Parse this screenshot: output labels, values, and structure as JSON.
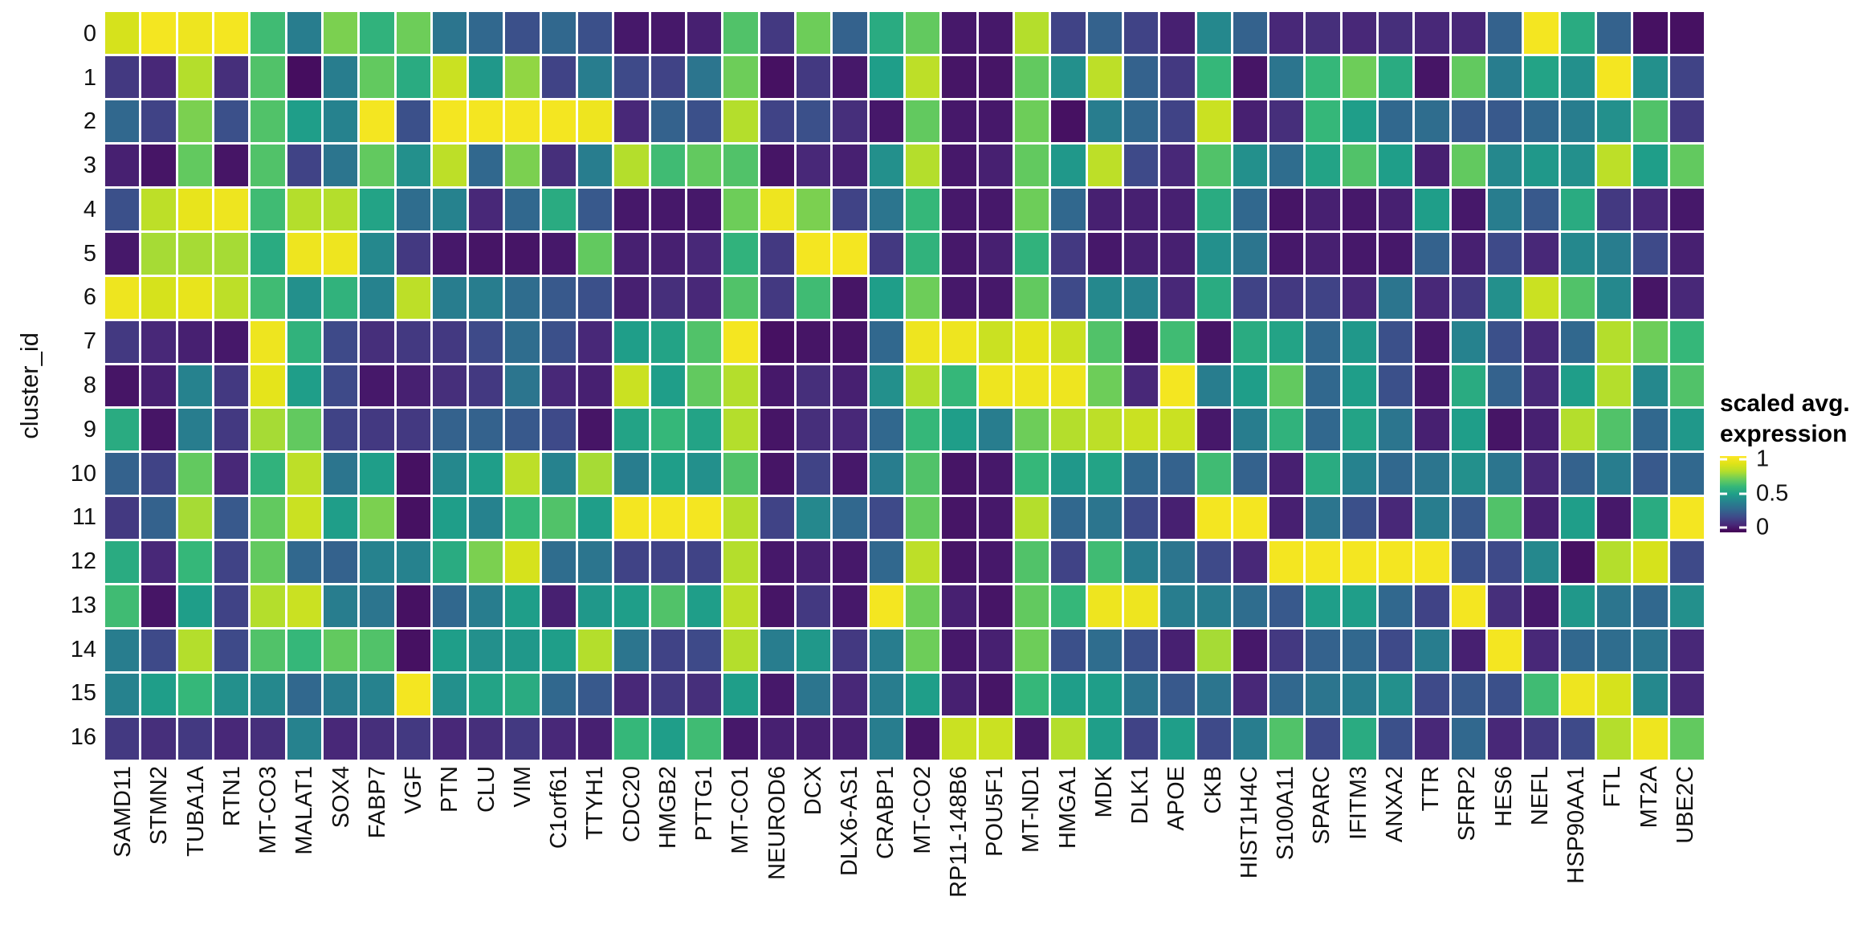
{
  "y_axis": {
    "title": "cluster_id"
  },
  "legend": {
    "title_line1": "scaled avg.",
    "title_line2": "expression",
    "ticks": [
      {
        "label": "1",
        "value": 1.0
      },
      {
        "label": "0.5",
        "value": 0.5
      },
      {
        "label": "0",
        "value": 0.0
      }
    ]
  },
  "colors": {
    "background": "#ffffff",
    "text": "#111111",
    "cell_gap": "#ffffff",
    "viridis_anchors": [
      "#440154",
      "#482878",
      "#3e4a89",
      "#31688e",
      "#26828e",
      "#1f9e89",
      "#35b779",
      "#6dcd59",
      "#b4de2c",
      "#dfe318",
      "#fde725"
    ]
  },
  "chart_data": {
    "type": "heatmap",
    "xlabel": "",
    "ylabel": "cluster_id",
    "zlabel": "scaled avg. expression",
    "zlim": [
      0,
      1
    ],
    "colormap": "viridis",
    "legend_position": "right",
    "grid": false,
    "x": [
      "SAMD11",
      "STMN2",
      "TUBA1A",
      "RTN1",
      "MT-CO3",
      "MALAT1",
      "SOX4",
      "FABP7",
      "VGF",
      "PTN",
      "CLU",
      "VIM",
      "C1orf61",
      "TTYH1",
      "CDC20",
      "HMGB2",
      "PTTG1",
      "MT-CO1",
      "NEUROD6",
      "DCX",
      "DLX6-AS1",
      "CRABP1",
      "MT-CO2",
      "RP11-148B6",
      "POU5F1",
      "MT-ND1",
      "HMGA1",
      "MDK",
      "DLK1",
      "APOE",
      "CKB",
      "HIST1H4C",
      "S100A11",
      "SPARC",
      "IFITM3",
      "ANXA2",
      "TTR",
      "SFRP2",
      "HES6",
      "NEFL",
      "HSP90AA1",
      "FTL",
      "MT2A",
      "UBE2C"
    ],
    "y": [
      "0",
      "1",
      "2",
      "3",
      "4",
      "5",
      "6",
      "7",
      "8",
      "9",
      "10",
      "11",
      "12",
      "13",
      "14",
      "15",
      "16"
    ],
    "values": [
      [
        0.88,
        0.97,
        0.95,
        0.97,
        0.62,
        0.38,
        0.72,
        0.58,
        0.7,
        0.35,
        0.3,
        0.22,
        0.3,
        0.22,
        0.06,
        0.06,
        0.08,
        0.65,
        0.15,
        0.7,
        0.28,
        0.55,
        0.68,
        0.06,
        0.06,
        0.8,
        0.18,
        0.28,
        0.18,
        0.08,
        0.42,
        0.28,
        0.1,
        0.12,
        0.1,
        0.12,
        0.1,
        0.1,
        0.28,
        0.97,
        0.55,
        0.28,
        0.04,
        0.04
      ],
      [
        0.15,
        0.1,
        0.8,
        0.12,
        0.65,
        0.03,
        0.38,
        0.68,
        0.55,
        0.85,
        0.48,
        0.75,
        0.18,
        0.38,
        0.2,
        0.18,
        0.35,
        0.7,
        0.04,
        0.15,
        0.06,
        0.5,
        0.82,
        0.05,
        0.05,
        0.68,
        0.45,
        0.82,
        0.28,
        0.15,
        0.6,
        0.05,
        0.35,
        0.6,
        0.7,
        0.55,
        0.05,
        0.68,
        0.38,
        0.52,
        0.45,
        0.97,
        0.45,
        0.18
      ],
      [
        0.3,
        0.18,
        0.72,
        0.22,
        0.65,
        0.5,
        0.4,
        0.97,
        0.22,
        0.97,
        0.97,
        0.97,
        0.97,
        0.95,
        0.1,
        0.28,
        0.22,
        0.8,
        0.18,
        0.22,
        0.12,
        0.06,
        0.68,
        0.06,
        0.06,
        0.7,
        0.04,
        0.38,
        0.3,
        0.18,
        0.85,
        0.08,
        0.12,
        0.6,
        0.5,
        0.3,
        0.32,
        0.25,
        0.25,
        0.3,
        0.38,
        0.45,
        0.65,
        0.15
      ],
      [
        0.08,
        0.05,
        0.68,
        0.05,
        0.65,
        0.18,
        0.35,
        0.68,
        0.45,
        0.82,
        0.3,
        0.72,
        0.12,
        0.38,
        0.8,
        0.62,
        0.68,
        0.65,
        0.05,
        0.1,
        0.08,
        0.45,
        0.8,
        0.06,
        0.08,
        0.68,
        0.48,
        0.82,
        0.2,
        0.1,
        0.65,
        0.45,
        0.32,
        0.52,
        0.65,
        0.5,
        0.08,
        0.68,
        0.42,
        0.48,
        0.45,
        0.82,
        0.5,
        0.68
      ],
      [
        0.22,
        0.82,
        0.93,
        0.95,
        0.62,
        0.8,
        0.8,
        0.52,
        0.32,
        0.4,
        0.1,
        0.3,
        0.55,
        0.25,
        0.06,
        0.06,
        0.06,
        0.7,
        0.95,
        0.72,
        0.18,
        0.35,
        0.6,
        0.06,
        0.06,
        0.7,
        0.3,
        0.08,
        0.08,
        0.08,
        0.55,
        0.3,
        0.05,
        0.08,
        0.06,
        0.08,
        0.5,
        0.06,
        0.38,
        0.25,
        0.55,
        0.15,
        0.1,
        0.06
      ],
      [
        0.06,
        0.78,
        0.78,
        0.78,
        0.55,
        0.95,
        0.95,
        0.42,
        0.15,
        0.06,
        0.05,
        0.05,
        0.06,
        0.68,
        0.08,
        0.08,
        0.1,
        0.58,
        0.15,
        0.97,
        0.97,
        0.15,
        0.58,
        0.06,
        0.08,
        0.58,
        0.15,
        0.06,
        0.08,
        0.08,
        0.45,
        0.35,
        0.06,
        0.08,
        0.06,
        0.06,
        0.28,
        0.08,
        0.2,
        0.1,
        0.42,
        0.38,
        0.2,
        0.08
      ],
      [
        0.95,
        0.88,
        0.93,
        0.82,
        0.62,
        0.45,
        0.58,
        0.4,
        0.82,
        0.38,
        0.38,
        0.32,
        0.25,
        0.22,
        0.08,
        0.12,
        0.1,
        0.65,
        0.15,
        0.62,
        0.05,
        0.5,
        0.7,
        0.06,
        0.06,
        0.68,
        0.2,
        0.42,
        0.4,
        0.1,
        0.55,
        0.18,
        0.15,
        0.18,
        0.1,
        0.35,
        0.1,
        0.15,
        0.45,
        0.85,
        0.65,
        0.42,
        0.05,
        0.1
      ],
      [
        0.15,
        0.1,
        0.08,
        0.06,
        0.95,
        0.58,
        0.2,
        0.12,
        0.15,
        0.15,
        0.2,
        0.32,
        0.22,
        0.1,
        0.5,
        0.52,
        0.65,
        0.97,
        0.04,
        0.05,
        0.05,
        0.3,
        0.95,
        0.95,
        0.85,
        0.92,
        0.85,
        0.65,
        0.05,
        0.62,
        0.05,
        0.55,
        0.52,
        0.3,
        0.48,
        0.22,
        0.06,
        0.4,
        0.22,
        0.1,
        0.3,
        0.8,
        0.7,
        0.6
      ],
      [
        0.05,
        0.08,
        0.4,
        0.15,
        0.92,
        0.5,
        0.2,
        0.06,
        0.08,
        0.12,
        0.15,
        0.35,
        0.1,
        0.08,
        0.85,
        0.5,
        0.68,
        0.8,
        0.06,
        0.12,
        0.08,
        0.45,
        0.8,
        0.6,
        0.95,
        0.95,
        0.95,
        0.7,
        0.1,
        0.97,
        0.38,
        0.5,
        0.68,
        0.3,
        0.5,
        0.22,
        0.06,
        0.55,
        0.28,
        0.1,
        0.5,
        0.8,
        0.42,
        0.65
      ],
      [
        0.55,
        0.05,
        0.38,
        0.15,
        0.78,
        0.68,
        0.18,
        0.15,
        0.15,
        0.28,
        0.28,
        0.25,
        0.2,
        0.05,
        0.52,
        0.6,
        0.52,
        0.8,
        0.05,
        0.12,
        0.1,
        0.3,
        0.6,
        0.5,
        0.38,
        0.7,
        0.8,
        0.82,
        0.85,
        0.85,
        0.06,
        0.38,
        0.58,
        0.3,
        0.52,
        0.35,
        0.08,
        0.5,
        0.05,
        0.08,
        0.8,
        0.65,
        0.3,
        0.48
      ],
      [
        0.28,
        0.18,
        0.68,
        0.1,
        0.58,
        0.82,
        0.35,
        0.5,
        0.04,
        0.42,
        0.5,
        0.82,
        0.4,
        0.78,
        0.38,
        0.5,
        0.45,
        0.65,
        0.05,
        0.18,
        0.06,
        0.38,
        0.65,
        0.05,
        0.06,
        0.6,
        0.48,
        0.52,
        0.3,
        0.28,
        0.62,
        0.28,
        0.08,
        0.55,
        0.4,
        0.3,
        0.35,
        0.45,
        0.35,
        0.1,
        0.28,
        0.38,
        0.25,
        0.3
      ],
      [
        0.15,
        0.28,
        0.78,
        0.25,
        0.68,
        0.85,
        0.5,
        0.72,
        0.04,
        0.5,
        0.4,
        0.6,
        0.65,
        0.5,
        0.97,
        0.97,
        0.97,
        0.8,
        0.18,
        0.42,
        0.3,
        0.2,
        0.68,
        0.05,
        0.06,
        0.8,
        0.3,
        0.35,
        0.2,
        0.08,
        0.97,
        0.97,
        0.08,
        0.35,
        0.22,
        0.1,
        0.38,
        0.25,
        0.65,
        0.08,
        0.5,
        0.06,
        0.55,
        0.97
      ],
      [
        0.55,
        0.1,
        0.6,
        0.18,
        0.68,
        0.3,
        0.28,
        0.4,
        0.4,
        0.55,
        0.72,
        0.88,
        0.32,
        0.35,
        0.18,
        0.18,
        0.18,
        0.8,
        0.06,
        0.08,
        0.06,
        0.3,
        0.82,
        0.05,
        0.06,
        0.65,
        0.18,
        0.62,
        0.38,
        0.35,
        0.2,
        0.1,
        0.97,
        0.97,
        0.97,
        0.97,
        0.97,
        0.22,
        0.2,
        0.42,
        0.04,
        0.8,
        0.88,
        0.2
      ],
      [
        0.62,
        0.05,
        0.5,
        0.18,
        0.8,
        0.85,
        0.38,
        0.35,
        0.04,
        0.3,
        0.38,
        0.5,
        0.08,
        0.48,
        0.5,
        0.65,
        0.5,
        0.82,
        0.05,
        0.15,
        0.06,
        0.97,
        0.7,
        0.08,
        0.05,
        0.68,
        0.6,
        0.95,
        0.95,
        0.38,
        0.38,
        0.32,
        0.25,
        0.5,
        0.5,
        0.3,
        0.18,
        0.97,
        0.12,
        0.06,
        0.48,
        0.35,
        0.3,
        0.45
      ],
      [
        0.38,
        0.2,
        0.8,
        0.2,
        0.65,
        0.6,
        0.68,
        0.65,
        0.04,
        0.5,
        0.45,
        0.48,
        0.5,
        0.8,
        0.35,
        0.18,
        0.2,
        0.8,
        0.38,
        0.48,
        0.15,
        0.38,
        0.7,
        0.06,
        0.08,
        0.7,
        0.22,
        0.32,
        0.22,
        0.08,
        0.78,
        0.06,
        0.15,
        0.28,
        0.3,
        0.2,
        0.38,
        0.08,
        0.97,
        0.1,
        0.3,
        0.32,
        0.35,
        0.1
      ],
      [
        0.4,
        0.5,
        0.6,
        0.45,
        0.42,
        0.3,
        0.38,
        0.4,
        0.97,
        0.45,
        0.52,
        0.55,
        0.3,
        0.25,
        0.1,
        0.15,
        0.12,
        0.5,
        0.06,
        0.35,
        0.1,
        0.38,
        0.5,
        0.08,
        0.05,
        0.6,
        0.5,
        0.5,
        0.35,
        0.25,
        0.35,
        0.1,
        0.3,
        0.35,
        0.38,
        0.45,
        0.2,
        0.25,
        0.22,
        0.62,
        0.95,
        0.88,
        0.42,
        0.1
      ],
      [
        0.15,
        0.12,
        0.15,
        0.1,
        0.12,
        0.4,
        0.1,
        0.12,
        0.15,
        0.1,
        0.12,
        0.15,
        0.1,
        0.08,
        0.6,
        0.5,
        0.62,
        0.06,
        0.08,
        0.08,
        0.08,
        0.38,
        0.05,
        0.85,
        0.85,
        0.06,
        0.8,
        0.5,
        0.18,
        0.5,
        0.2,
        0.38,
        0.65,
        0.2,
        0.55,
        0.22,
        0.1,
        0.3,
        0.1,
        0.15,
        0.2,
        0.8,
        0.95,
        0.68
      ]
    ]
  }
}
